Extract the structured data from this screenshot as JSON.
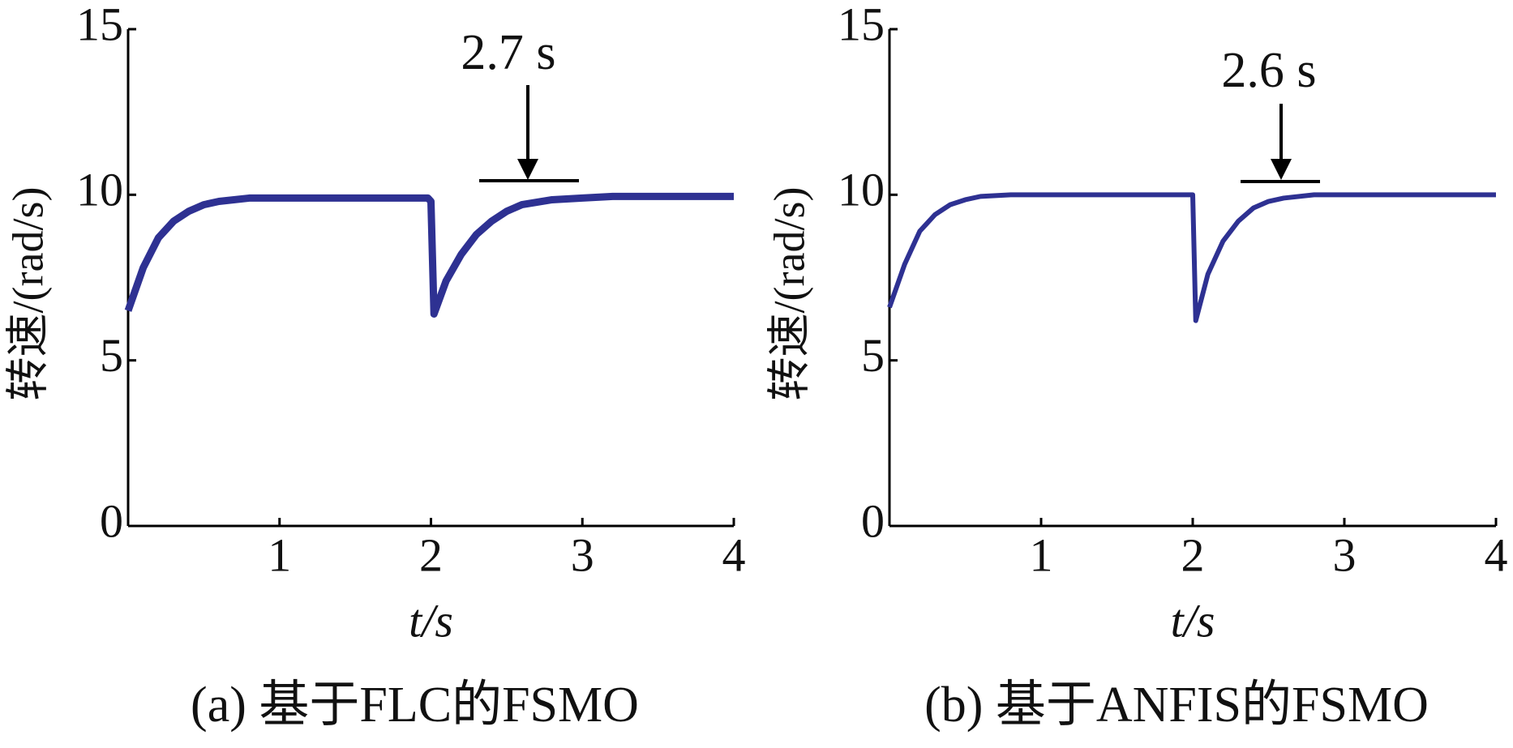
{
  "chart_data": [
    {
      "type": "line",
      "caption": "(a) 基于FLC的FSMO",
      "y_label": "转速/(rad/s)",
      "x_label": "t/s",
      "annotation": "2.7 s",
      "x": [
        0,
        0.1,
        0.2,
        0.3,
        0.4,
        0.5,
        0.6,
        0.8,
        1.0,
        1.2,
        1.4,
        1.6,
        1.8,
        1.98,
        2.0,
        2.02,
        2.1,
        2.2,
        2.3,
        2.4,
        2.5,
        2.6,
        2.8,
        3.0,
        3.2,
        3.4,
        3.6,
        3.8,
        4.0
      ],
      "series": [
        {
          "color": "#2e3192",
          "values": [
            6.5,
            7.8,
            8.7,
            9.2,
            9.5,
            9.7,
            9.8,
            9.9,
            9.9,
            9.9,
            9.9,
            9.9,
            9.9,
            9.9,
            9.8,
            6.4,
            7.4,
            8.2,
            8.8,
            9.2,
            9.5,
            9.7,
            9.85,
            9.9,
            9.95,
            9.95,
            9.95,
            9.95,
            9.95
          ]
        }
      ],
      "xlim": [
        0,
        4
      ],
      "xticks": [
        1,
        2,
        3,
        4
      ],
      "ylim": [
        0,
        15
      ],
      "yticks": [
        0,
        5,
        10,
        15
      ]
    },
    {
      "type": "line",
      "caption": "(b) 基于ANFIS的FSMO",
      "y_label": "转速/(rad/s)",
      "x_label": "t/s",
      "annotation": "2.6 s",
      "x": [
        0,
        0.1,
        0.2,
        0.3,
        0.4,
        0.5,
        0.6,
        0.8,
        1.0,
        1.2,
        1.4,
        1.6,
        1.8,
        1.98,
        2.0,
        2.02,
        2.1,
        2.2,
        2.3,
        2.4,
        2.5,
        2.6,
        2.8,
        3.0,
        3.2,
        3.4,
        3.6,
        3.8,
        4.0
      ],
      "series": [
        {
          "color": "#2e3192",
          "values": [
            6.6,
            7.9,
            8.9,
            9.4,
            9.7,
            9.85,
            9.95,
            10,
            10,
            10,
            10,
            10,
            10,
            10,
            10,
            6.2,
            7.6,
            8.6,
            9.2,
            9.6,
            9.8,
            9.9,
            10,
            10,
            10,
            10,
            10,
            10,
            10
          ]
        }
      ],
      "xlim": [
        0,
        4
      ],
      "xticks": [
        1,
        2,
        3,
        4
      ],
      "ylim": [
        0,
        15
      ],
      "yticks": [
        0,
        5,
        10,
        15
      ]
    }
  ]
}
